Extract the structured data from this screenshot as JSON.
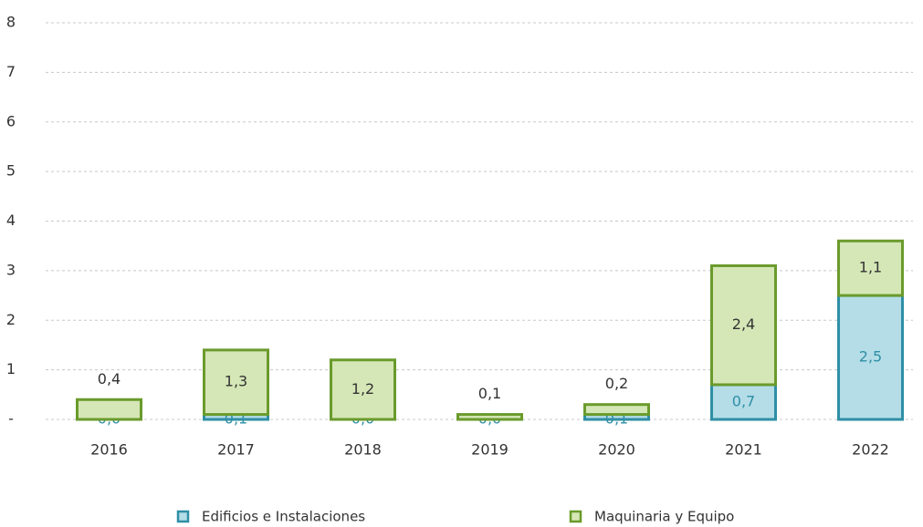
{
  "chart_data": {
    "type": "stacked_bar",
    "categories": [
      "2016",
      "2017",
      "2018",
      "2019",
      "2020",
      "2021",
      "2022"
    ],
    "series": [
      {
        "name": "Edificios e Instalaciones",
        "color": "#b4dde7",
        "stroke": "#2f8fa6",
        "label_color": "#2f8fa6",
        "values": [
          0.0,
          0.1,
          0.0,
          0.0,
          0.1,
          0.7,
          2.5
        ],
        "value_labels": [
          "0,0",
          "0,1",
          "0,0",
          "0,0",
          "0,1",
          "0,7",
          "2,5"
        ]
      },
      {
        "name": "Maquinaria y Equipo",
        "color": "#d5e7b6",
        "stroke": "#6a9b2c",
        "label_color": "#333333",
        "values": [
          0.4,
          1.3,
          1.2,
          0.1,
          0.2,
          2.4,
          1.1
        ],
        "value_labels": [
          "0,4",
          "1,3",
          "1,2",
          "0,1",
          "0,2",
          "2,4",
          "1,1"
        ]
      }
    ],
    "ylim": [
      0,
      8
    ],
    "yticks": [
      {
        "value": 0,
        "label": "-"
      },
      1,
      2,
      3,
      4,
      5,
      6,
      7,
      8
    ],
    "grid": true
  }
}
